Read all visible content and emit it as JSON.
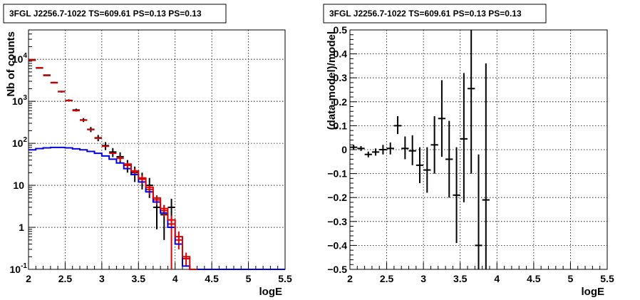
{
  "chart_data": [
    {
      "type": "scatter",
      "title": "3FGL J2256.7-1022 TS=609.61 PS=0.13 PS=0.13",
      "xlabel": "logE",
      "ylabel": "Nb of counts",
      "xlim": [
        2,
        5.5
      ],
      "ylim": [
        0.1,
        50000
      ],
      "ylog": true,
      "grid": true,
      "xticks": [
        {
          "v": 2,
          "label": "2"
        },
        {
          "v": 2.5,
          "label": "2.5"
        },
        {
          "v": 3,
          "label": "3"
        },
        {
          "v": 3.5,
          "label": "3.5"
        },
        {
          "v": 4,
          "label": "4"
        },
        {
          "v": 4.5,
          "label": "4.5"
        },
        {
          "v": 5,
          "label": "5"
        },
        {
          "v": 5.5,
          "label": "5.5"
        }
      ],
      "yticks": [
        {
          "v": 0.1,
          "base": "10",
          "exp": "-1"
        },
        {
          "v": 1,
          "base": "1",
          "exp": ""
        },
        {
          "v": 10,
          "base": "10",
          "exp": ""
        },
        {
          "v": 100,
          "base": "10",
          "exp": "2"
        },
        {
          "v": 1000,
          "base": "10",
          "exp": "3"
        },
        {
          "v": 10000,
          "base": "10",
          "exp": "4"
        }
      ],
      "series": [
        {
          "kind": "points",
          "color": "#000000",
          "points": [
            {
              "x": 2.05,
              "y": 9500,
              "lo": 9305,
              "hi": 9695
            },
            {
              "x": 2.15,
              "y": 6200,
              "lo": 6043,
              "hi": 6357
            },
            {
              "x": 2.25,
              "y": 4200,
              "lo": 4070,
              "hi": 4330
            },
            {
              "x": 2.35,
              "y": 2800,
              "lo": 2694,
              "hi": 2906
            },
            {
              "x": 2.45,
              "y": 1700,
              "lo": 1617,
              "hi": 1783
            },
            {
              "x": 2.55,
              "y": 1050,
              "lo": 985,
              "hi": 1115
            },
            {
              "x": 2.65,
              "y": 620,
              "lo": 570,
              "hi": 670
            },
            {
              "x": 2.75,
              "y": 360,
              "lo": 321,
              "hi": 399
            },
            {
              "x": 2.85,
              "y": 215,
              "lo": 185,
              "hi": 245
            },
            {
              "x": 2.95,
              "y": 135,
              "lo": 112,
              "hi": 158
            },
            {
              "x": 3.05,
              "y": 88,
              "lo": 69,
              "hi": 107
            },
            {
              "x": 3.15,
              "y": 62,
              "lo": 47,
              "hi": 77
            },
            {
              "x": 3.25,
              "y": 48,
              "lo": 35,
              "hi": 61
            },
            {
              "x": 3.35,
              "y": 30,
              "lo": 20,
              "hi": 40
            },
            {
              "x": 3.45,
              "y": 20,
              "lo": 12,
              "hi": 28
            },
            {
              "x": 3.55,
              "y": 14,
              "lo": 8,
              "hi": 20
            },
            {
              "x": 3.65,
              "y": 10,
              "lo": 5,
              "hi": 15
            },
            {
              "x": 3.75,
              "y": 3,
              "lo": 0.9,
              "hi": 5
            },
            {
              "x": 3.85,
              "y": 2,
              "lo": 0.5,
              "hi": 3.4
            },
            {
              "x": 3.95,
              "y": 3,
              "lo": 1.3,
              "hi": 4.8
            }
          ]
        },
        {
          "kind": "points",
          "color": "#e00000",
          "points": [
            {
              "x": 2.05,
              "y": 9600
            },
            {
              "x": 2.15,
              "y": 6300
            },
            {
              "x": 2.25,
              "y": 4100
            },
            {
              "x": 2.35,
              "y": 2750
            },
            {
              "x": 2.45,
              "y": 1720
            },
            {
              "x": 2.55,
              "y": 1040
            },
            {
              "x": 2.65,
              "y": 600
            },
            {
              "x": 2.75,
              "y": 355
            },
            {
              "x": 2.85,
              "y": 212
            },
            {
              "x": 2.95,
              "y": 132
            },
            {
              "x": 3.05,
              "y": 85
            },
            {
              "x": 3.15,
              "y": 58
            },
            {
              "x": 3.25,
              "y": 44,
              "lo": 38,
              "hi": 50
            },
            {
              "x": 3.35,
              "y": 30,
              "lo": 25,
              "hi": 35
            },
            {
              "x": 3.45,
              "y": 21,
              "lo": 17,
              "hi": 25
            },
            {
              "x": 3.55,
              "y": 14,
              "lo": 11,
              "hi": 17
            },
            {
              "x": 3.65,
              "y": 8,
              "lo": 6,
              "hi": 10
            },
            {
              "x": 3.75,
              "y": 4.5,
              "lo": 3.4,
              "hi": 5.8
            },
            {
              "x": 3.85,
              "y": 2.5,
              "lo": 1.8,
              "hi": 3.3
            },
            {
              "x": 3.95,
              "y": 1.2,
              "lo": 0.1,
              "hi": 1.9
            },
            {
              "x": 4.05,
              "y": 0.5,
              "lo": 0.3,
              "hi": 0.8
            },
            {
              "x": 4.15,
              "y": 0.18,
              "lo": 0.12,
              "hi": 0.25
            }
          ]
        },
        {
          "kind": "step",
          "color": "#0000dd",
          "bins": [
            {
              "x0": 2.0,
              "x1": 2.1,
              "y": 70
            },
            {
              "x0": 2.1,
              "x1": 2.2,
              "y": 75
            },
            {
              "x0": 2.2,
              "x1": 2.3,
              "y": 78
            },
            {
              "x0": 2.3,
              "x1": 2.4,
              "y": 80
            },
            {
              "x0": 2.4,
              "x1": 2.5,
              "y": 80
            },
            {
              "x0": 2.5,
              "x1": 2.6,
              "y": 78
            },
            {
              "x0": 2.6,
              "x1": 2.7,
              "y": 74
            },
            {
              "x0": 2.7,
              "x1": 2.8,
              "y": 70
            },
            {
              "x0": 2.8,
              "x1": 2.9,
              "y": 64
            },
            {
              "x0": 2.9,
              "x1": 3.0,
              "y": 58
            },
            {
              "x0": 3.0,
              "x1": 3.1,
              "y": 50
            },
            {
              "x0": 3.1,
              "x1": 3.2,
              "y": 42
            },
            {
              "x0": 3.2,
              "x1": 3.3,
              "y": 34
            },
            {
              "x0": 3.3,
              "x1": 3.4,
              "y": 25
            },
            {
              "x0": 3.4,
              "x1": 3.5,
              "y": 18
            },
            {
              "x0": 3.5,
              "x1": 3.6,
              "y": 12
            },
            {
              "x0": 3.6,
              "x1": 3.7,
              "y": 7
            },
            {
              "x0": 3.7,
              "x1": 3.8,
              "y": 4
            },
            {
              "x0": 3.8,
              "x1": 3.9,
              "y": 2.2
            },
            {
              "x0": 3.9,
              "x1": 4.0,
              "y": 1
            },
            {
              "x0": 4.0,
              "x1": 4.1,
              "y": 0.4
            },
            {
              "x0": 4.1,
              "x1": 4.2,
              "y": 0.12
            },
            {
              "x0": 4.2,
              "x1": 5.5,
              "y": 0.1
            }
          ]
        },
        {
          "kind": "step",
          "color": "#e00000",
          "bins": [
            {
              "x0": 3.3,
              "x1": 3.4,
              "y": 32
            },
            {
              "x0": 3.4,
              "x1": 3.5,
              "y": 22
            },
            {
              "x0": 3.5,
              "x1": 3.6,
              "y": 15
            },
            {
              "x0": 3.6,
              "x1": 3.7,
              "y": 9
            },
            {
              "x0": 3.7,
              "x1": 3.8,
              "y": 5
            },
            {
              "x0": 3.8,
              "x1": 3.9,
              "y": 2.8
            },
            {
              "x0": 3.9,
              "x1": 4.0,
              "y": 1.5
            },
            {
              "x0": 4.0,
              "x1": 4.1,
              "y": 0.6
            },
            {
              "x0": 4.1,
              "x1": 4.2,
              "y": 0.2
            },
            {
              "x0": 4.2,
              "x1": 4.3,
              "y": 0.1
            }
          ]
        }
      ]
    },
    {
      "type": "scatter",
      "title": "3FGL J2256.7-1022 TS=609.61 PS=0.13 PS=0.13",
      "xlabel": "logE",
      "ylabel": "(data-model)/model",
      "xlim": [
        2,
        5.5
      ],
      "ylim": [
        -0.5,
        0.5
      ],
      "ylog": false,
      "grid": true,
      "xticks": [
        {
          "v": 2,
          "label": "2"
        },
        {
          "v": 2.5,
          "label": "2.5"
        },
        {
          "v": 3,
          "label": "3"
        },
        {
          "v": 3.5,
          "label": "3.5"
        },
        {
          "v": 4,
          "label": "4"
        },
        {
          "v": 4.5,
          "label": "4.5"
        },
        {
          "v": 5,
          "label": "5"
        },
        {
          "v": 5.5,
          "label": "5.5"
        }
      ],
      "yticks": [
        {
          "v": -0.5,
          "label": "−0.5"
        },
        {
          "v": -0.4,
          "label": "−0.4"
        },
        {
          "v": -0.3,
          "label": "−0.3"
        },
        {
          "v": -0.2,
          "label": "−0.2"
        },
        {
          "v": -0.1,
          "label": "−0.1"
        },
        {
          "v": 0,
          "label": "0"
        },
        {
          "v": 0.1,
          "label": "0.1"
        },
        {
          "v": 0.2,
          "label": "0.2"
        },
        {
          "v": 0.3,
          "label": "0.3"
        },
        {
          "v": 0.4,
          "label": "0.4"
        },
        {
          "v": 0.5,
          "label": "0.5"
        }
      ],
      "series": [
        {
          "kind": "points",
          "color": "#000000",
          "points": [
            {
              "x": 2.05,
              "y": 0.01,
              "lo": 0.0,
              "hi": 0.02
            },
            {
              "x": 2.15,
              "y": 0.005,
              "lo": -0.005,
              "hi": 0.015
            },
            {
              "x": 2.25,
              "y": -0.02,
              "lo": -0.032,
              "hi": -0.008
            },
            {
              "x": 2.35,
              "y": -0.01,
              "lo": -0.025,
              "hi": 0.005
            },
            {
              "x": 2.45,
              "y": 0.0,
              "lo": -0.02,
              "hi": 0.02
            },
            {
              "x": 2.55,
              "y": 0.005,
              "lo": -0.02,
              "hi": 0.03
            },
            {
              "x": 2.65,
              "y": 0.1,
              "lo": 0.065,
              "hi": 0.14
            },
            {
              "x": 2.75,
              "y": 0.005,
              "lo": -0.04,
              "hi": 0.055
            },
            {
              "x": 2.85,
              "y": -0.005,
              "lo": -0.065,
              "hi": 0.06
            },
            {
              "x": 2.95,
              "y": -0.065,
              "lo": -0.14,
              "hi": 0.01
            },
            {
              "x": 3.05,
              "y": -0.085,
              "lo": -0.18,
              "hi": 0.01
            },
            {
              "x": 3.15,
              "y": 0.02,
              "lo": -0.1,
              "hi": 0.14
            },
            {
              "x": 3.25,
              "y": 0.13,
              "lo": -0.03,
              "hi": 0.29
            },
            {
              "x": 3.35,
              "y": -0.04,
              "lo": -0.2,
              "hi": 0.12
            },
            {
              "x": 3.45,
              "y": -0.19,
              "lo": -0.39,
              "hi": 0.01
            },
            {
              "x": 3.55,
              "y": 0.045,
              "lo": -0.22,
              "hi": 0.32
            },
            {
              "x": 3.65,
              "y": 0.255,
              "lo": -0.1,
              "hi": 0.5
            },
            {
              "x": 3.75,
              "y": -0.4,
              "lo": -0.5,
              "hi": -0.02
            },
            {
              "x": 3.85,
              "y": -0.21,
              "lo": -0.5,
              "hi": 0.36
            }
          ]
        }
      ]
    }
  ]
}
